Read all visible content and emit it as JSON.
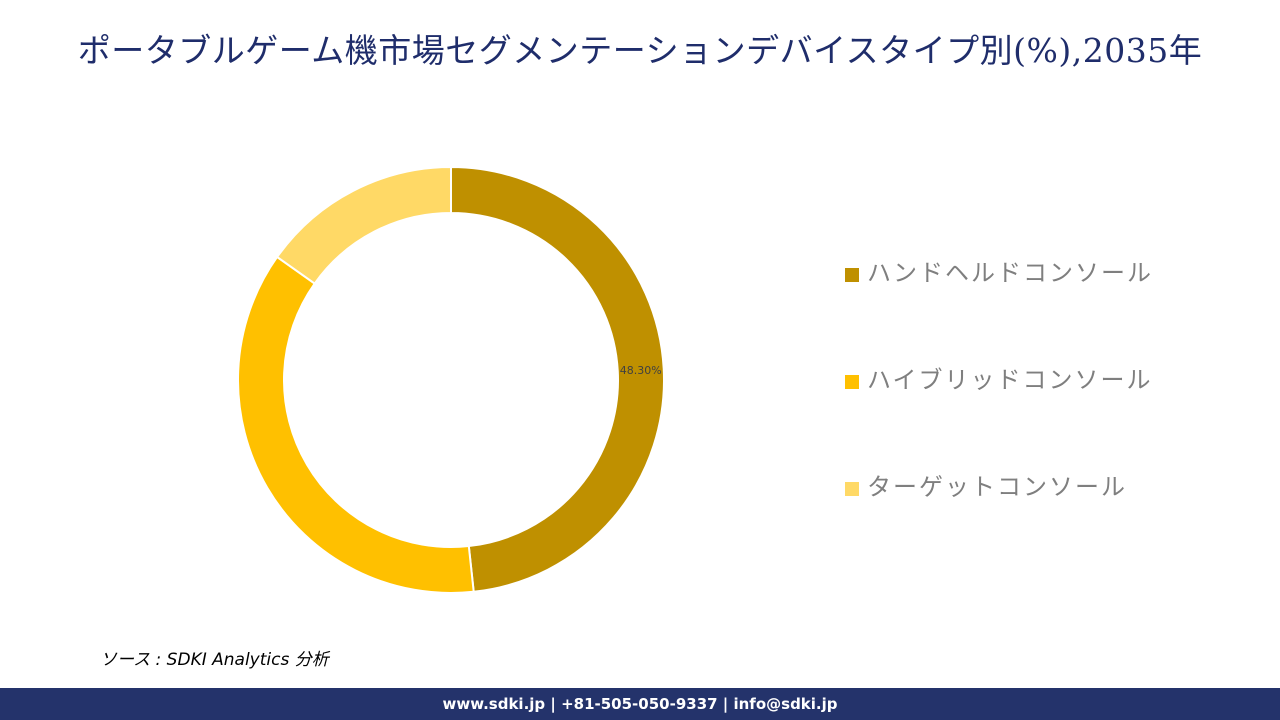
{
  "title": "ポータブルゲーム機市場セグメンテーションデバイスタイプ別(%),2035年",
  "chart_data": {
    "type": "pie",
    "subtype": "donut",
    "title": "ポータブルゲーム機市場セグメンテーションデバイスタイプ別(%),2035年",
    "categories": [
      "ハンドヘルドコンソール",
      "ハイブリッドコンソール",
      "ターゲットコンソール"
    ],
    "values": [
      48.3,
      36.5,
      15.2
    ],
    "colors": [
      "#bf9000",
      "#ffc000",
      "#ffd966"
    ],
    "data_labels": [
      "48.30%",
      "",
      ""
    ],
    "legend_position": "right"
  },
  "legend": {
    "items": [
      {
        "label": "ハンドヘルドコンソール",
        "color": "#bf9000"
      },
      {
        "label": "ハイブリッドコンソール",
        "color": "#ffc000"
      },
      {
        "label": "ターゲットコンソール",
        "color": "#ffd966"
      }
    ]
  },
  "source": "ソース : SDKI Analytics 分析",
  "footer": "www.sdki.jp | +81-505-050-9337 | info@sdki.jp"
}
